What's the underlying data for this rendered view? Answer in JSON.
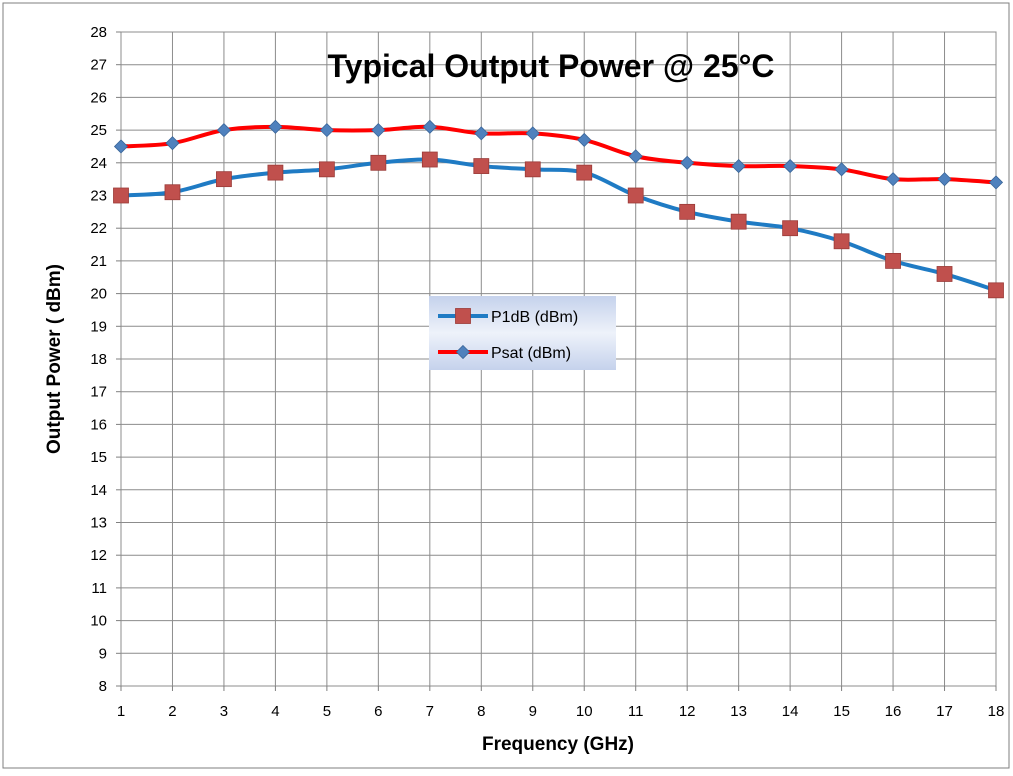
{
  "chart_data": {
    "type": "line",
    "title": "Typical Output Power @ 25°C",
    "xlabel": "Frequency (GHz)",
    "ylabel": "Output Power ( dBm)",
    "x": [
      1,
      2,
      3,
      4,
      5,
      6,
      7,
      8,
      9,
      10,
      11,
      12,
      13,
      14,
      15,
      16,
      17,
      18
    ],
    "xlim": [
      1,
      18
    ],
    "ylim": [
      8,
      28
    ],
    "xticks": [
      1,
      2,
      3,
      4,
      5,
      6,
      7,
      8,
      9,
      10,
      11,
      12,
      13,
      14,
      15,
      16,
      17,
      18
    ],
    "yticks": [
      8,
      9,
      10,
      11,
      12,
      13,
      14,
      15,
      16,
      17,
      18,
      19,
      20,
      21,
      22,
      23,
      24,
      25,
      26,
      27,
      28
    ],
    "grid": true,
    "legend_position": "center",
    "series": [
      {
        "name": "P1dB (dBm)",
        "color": "#1F7BC4",
        "marker": "square",
        "marker_color": "#C0504D",
        "values": [
          23.0,
          23.1,
          23.5,
          23.7,
          23.8,
          24.0,
          24.1,
          23.9,
          23.8,
          23.7,
          23.0,
          22.5,
          22.2,
          22.0,
          21.6,
          21.0,
          20.6,
          20.1
        ]
      },
      {
        "name": "Psat (dBm)",
        "color": "#FF0000",
        "marker": "diamond",
        "marker_color": "#4F81BD",
        "values": [
          24.5,
          24.6,
          25.0,
          25.1,
          25.0,
          25.0,
          25.1,
          24.9,
          24.9,
          24.7,
          24.2,
          24.0,
          23.9,
          23.9,
          23.8,
          23.5,
          23.5,
          23.4
        ]
      }
    ]
  }
}
